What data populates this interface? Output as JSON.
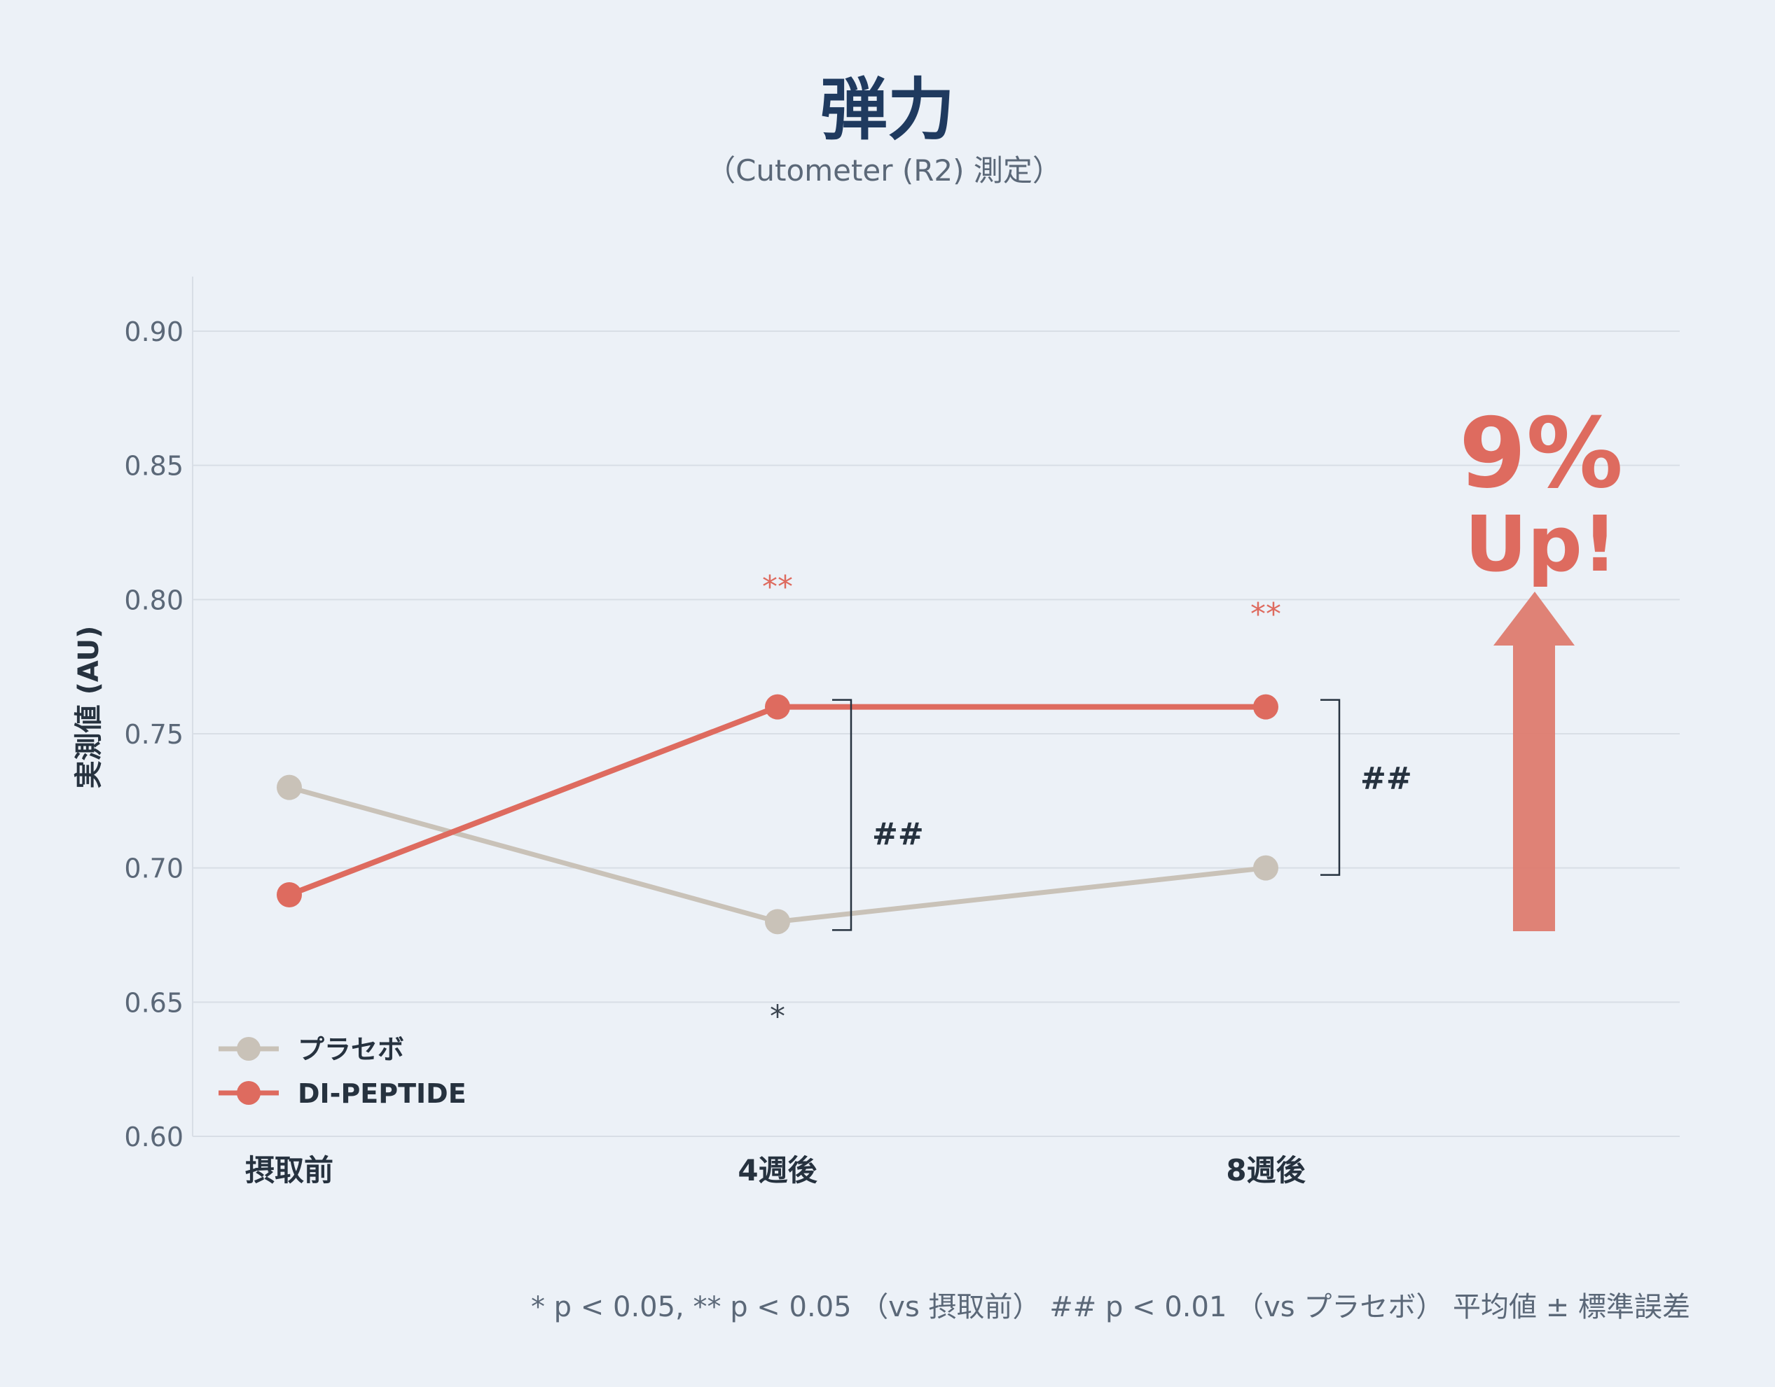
{
  "chart_data": {
    "type": "line",
    "title": "弾力",
    "subtitle": "（Cutometer (R2) 測定）",
    "ylabel": "実測値 (AU)",
    "categories": [
      "摂取前",
      "4週後",
      "8週後"
    ],
    "ylim": [
      0.6,
      0.92
    ],
    "yticks": [
      "0.60",
      "0.65",
      "0.70",
      "0.75",
      "0.80",
      "0.85",
      "0.90"
    ],
    "grid": true,
    "legend_position": "bottom-left",
    "series": [
      {
        "name": "プラセボ",
        "values": [
          0.73,
          0.68,
          0.7
        ],
        "color": "#c9c2b8"
      },
      {
        "name": "DI-PEPTIDE",
        "values": [
          0.69,
          0.76,
          0.76
        ],
        "color": "#de6b5f"
      }
    ],
    "annotations": {
      "vs_baseline": [
        {
          "category": "4週後",
          "series": "DI-PEPTIDE",
          "label": "**"
        },
        {
          "category": "8週後",
          "series": "DI-PEPTIDE",
          "label": "**"
        },
        {
          "category": "4週後",
          "series": "プラセボ",
          "label": "*"
        }
      ],
      "vs_placebo": [
        {
          "category": "4週後",
          "label": "##"
        },
        {
          "category": "8週後",
          "label": "##"
        }
      ]
    },
    "callout": {
      "line1": "9%",
      "line2": "Up!"
    },
    "footnote": "* p < 0.05, ** p < 0.05 （vs 摂取前） ## p < 0.01 （vs プラセボ）   平均値 ± 標準誤差"
  }
}
